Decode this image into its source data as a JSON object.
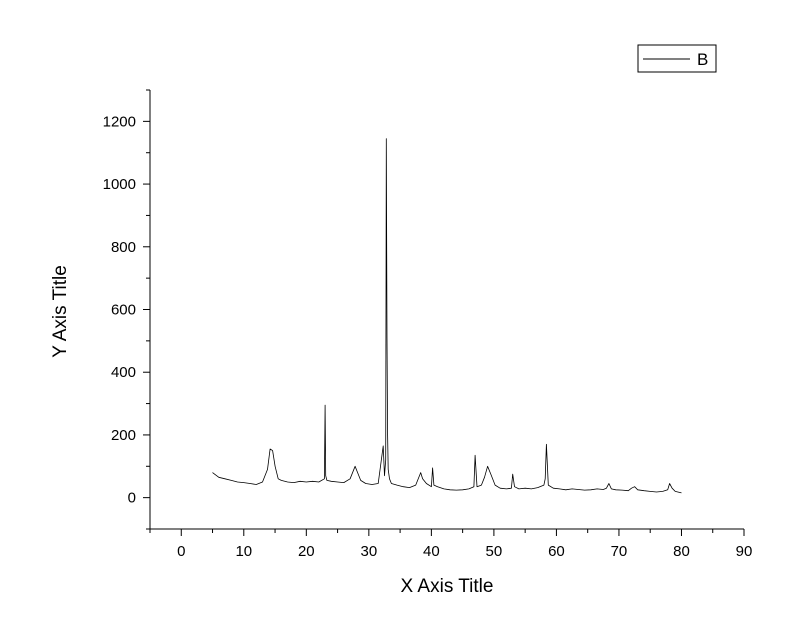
{
  "chart_data": {
    "type": "line",
    "title": "",
    "xlabel": "X Axis Title",
    "ylabel": "Y Axis Title",
    "xlim": [
      -5,
      90
    ],
    "ylim": [
      -100,
      1300
    ],
    "x_ticks": [
      0,
      10,
      20,
      30,
      40,
      50,
      60,
      70,
      80,
      90
    ],
    "y_ticks": [
      0,
      200,
      400,
      600,
      800,
      1000,
      1200
    ],
    "grid": false,
    "legend": {
      "position": "top-right",
      "entries": [
        "B"
      ]
    },
    "series": [
      {
        "name": "B",
        "color": "#000000",
        "x": [
          5.0,
          6.0,
          7.0,
          8.0,
          9.0,
          10.0,
          11.0,
          12.0,
          13.0,
          13.8,
          14.2,
          14.6,
          15.0,
          15.5,
          16.0,
          17.0,
          18.0,
          19.0,
          20.0,
          21.0,
          22.0,
          22.9,
          23.0,
          23.1,
          23.3,
          24.0,
          25.0,
          26.0,
          27.0,
          27.8,
          28.2,
          28.7,
          29.5,
          30.5,
          31.5,
          32.3,
          32.5,
          32.7,
          32.8,
          32.9,
          33.0,
          33.1,
          33.3,
          33.6,
          34.5,
          35.5,
          36.5,
          37.5,
          38.3,
          38.6,
          39.2,
          40.0,
          40.2,
          40.4,
          41.0,
          42.0,
          43.0,
          44.0,
          45.0,
          46.0,
          46.8,
          47.0,
          47.3,
          48.0,
          48.5,
          49.0,
          49.5,
          50.2,
          51.0,
          52.0,
          52.8,
          53.0,
          53.3,
          54.0,
          55.0,
          56.0,
          57.0,
          58.0,
          58.2,
          58.4,
          58.7,
          59.5,
          60.5,
          61.5,
          62.5,
          63.5,
          64.5,
          65.5,
          66.5,
          67.5,
          68.0,
          68.4,
          68.8,
          69.5,
          70.5,
          71.5,
          72.0,
          72.5,
          73.0,
          74.0,
          75.0,
          76.0,
          77.0,
          77.8,
          78.1,
          78.5,
          79.0,
          80.0
        ],
        "y": [
          80,
          65,
          60,
          55,
          50,
          48,
          45,
          42,
          50,
          90,
          155,
          150,
          100,
          60,
          55,
          50,
          48,
          52,
          50,
          52,
          50,
          60,
          295,
          70,
          55,
          52,
          50,
          48,
          60,
          100,
          80,
          55,
          45,
          42,
          45,
          165,
          70,
          120,
          1145,
          510,
          200,
          90,
          60,
          45,
          40,
          35,
          32,
          40,
          80,
          60,
          45,
          35,
          95,
          40,
          35,
          28,
          25,
          24,
          25,
          28,
          35,
          135,
          35,
          40,
          65,
          100,
          75,
          40,
          30,
          28,
          30,
          75,
          35,
          28,
          30,
          28,
          32,
          40,
          60,
          170,
          40,
          30,
          28,
          25,
          28,
          26,
          24,
          25,
          28,
          26,
          30,
          45,
          28,
          25,
          24,
          22,
          30,
          35,
          25,
          22,
          20,
          18,
          20,
          25,
          45,
          30,
          20,
          15
        ]
      }
    ]
  }
}
